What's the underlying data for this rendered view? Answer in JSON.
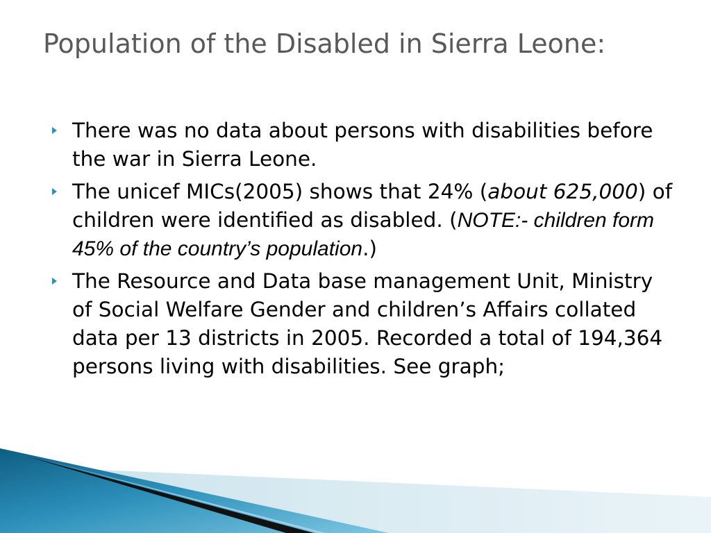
{
  "slide": {
    "title": "Population of the Disabled in Sierra Leone:",
    "bullets": [
      {
        "text": "There was no data about persons with disabilities before the war in Sierra Leone."
      },
      {
        "part1": "The unicef MICs(2005) shows that 24% (",
        "part2_italic": "about 625,000",
        "part3": ") of children were identified as disabled. (",
        "note_italic": "NOTE:- children form 45% of the country’s population",
        "part5": ".)"
      },
      {
        "text": "The Resource and Data base management Unit, Ministry of Social Welfare Gender and children’s Affairs collated data per 13 districts in 2005. Recorded a total of 194,364 persons living with disabilities. See graph;"
      }
    ],
    "bullet_icon": "triangle-bullet-icon",
    "colors": {
      "title": "#595959",
      "bullet": "#2e8fb7",
      "accent_dark": "#1f6f93",
      "accent_light": "#5fb3d3"
    }
  }
}
